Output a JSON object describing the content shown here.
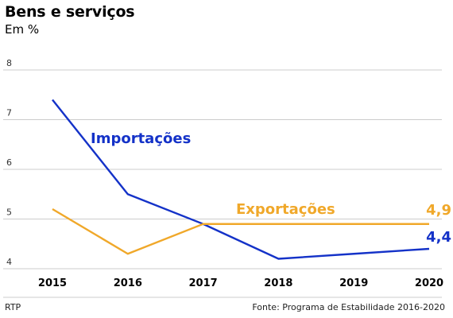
{
  "header": {
    "title": "Bens e serviços",
    "subtitle": "Em %"
  },
  "footer": {
    "source_left": "RTP",
    "source_right": "Fonte: Programa de Estabilidade 2016-2020"
  },
  "colors": {
    "importacoes": "#1432c8",
    "exportacoes": "#f0a82a",
    "grid": "#cccccc",
    "axis": "#888888"
  },
  "chart_data": {
    "type": "line",
    "title": "Bens e serviços",
    "subtitle": "Em %",
    "x": [
      "2015",
      "2016",
      "2017",
      "2018",
      "2019",
      "2020"
    ],
    "ylim": [
      4,
      8
    ],
    "yticks": [
      "4",
      "5",
      "6",
      "7",
      "8"
    ],
    "grid": true,
    "series": [
      {
        "name": "Importações",
        "values": [
          7.4,
          5.5,
          4.9,
          4.2,
          4.3,
          4.4
        ],
        "end_label": "4,4"
      },
      {
        "name": "Exportações",
        "values": [
          5.2,
          4.3,
          4.9,
          4.9,
          4.9,
          4.9
        ],
        "end_label": "4,9"
      }
    ]
  }
}
